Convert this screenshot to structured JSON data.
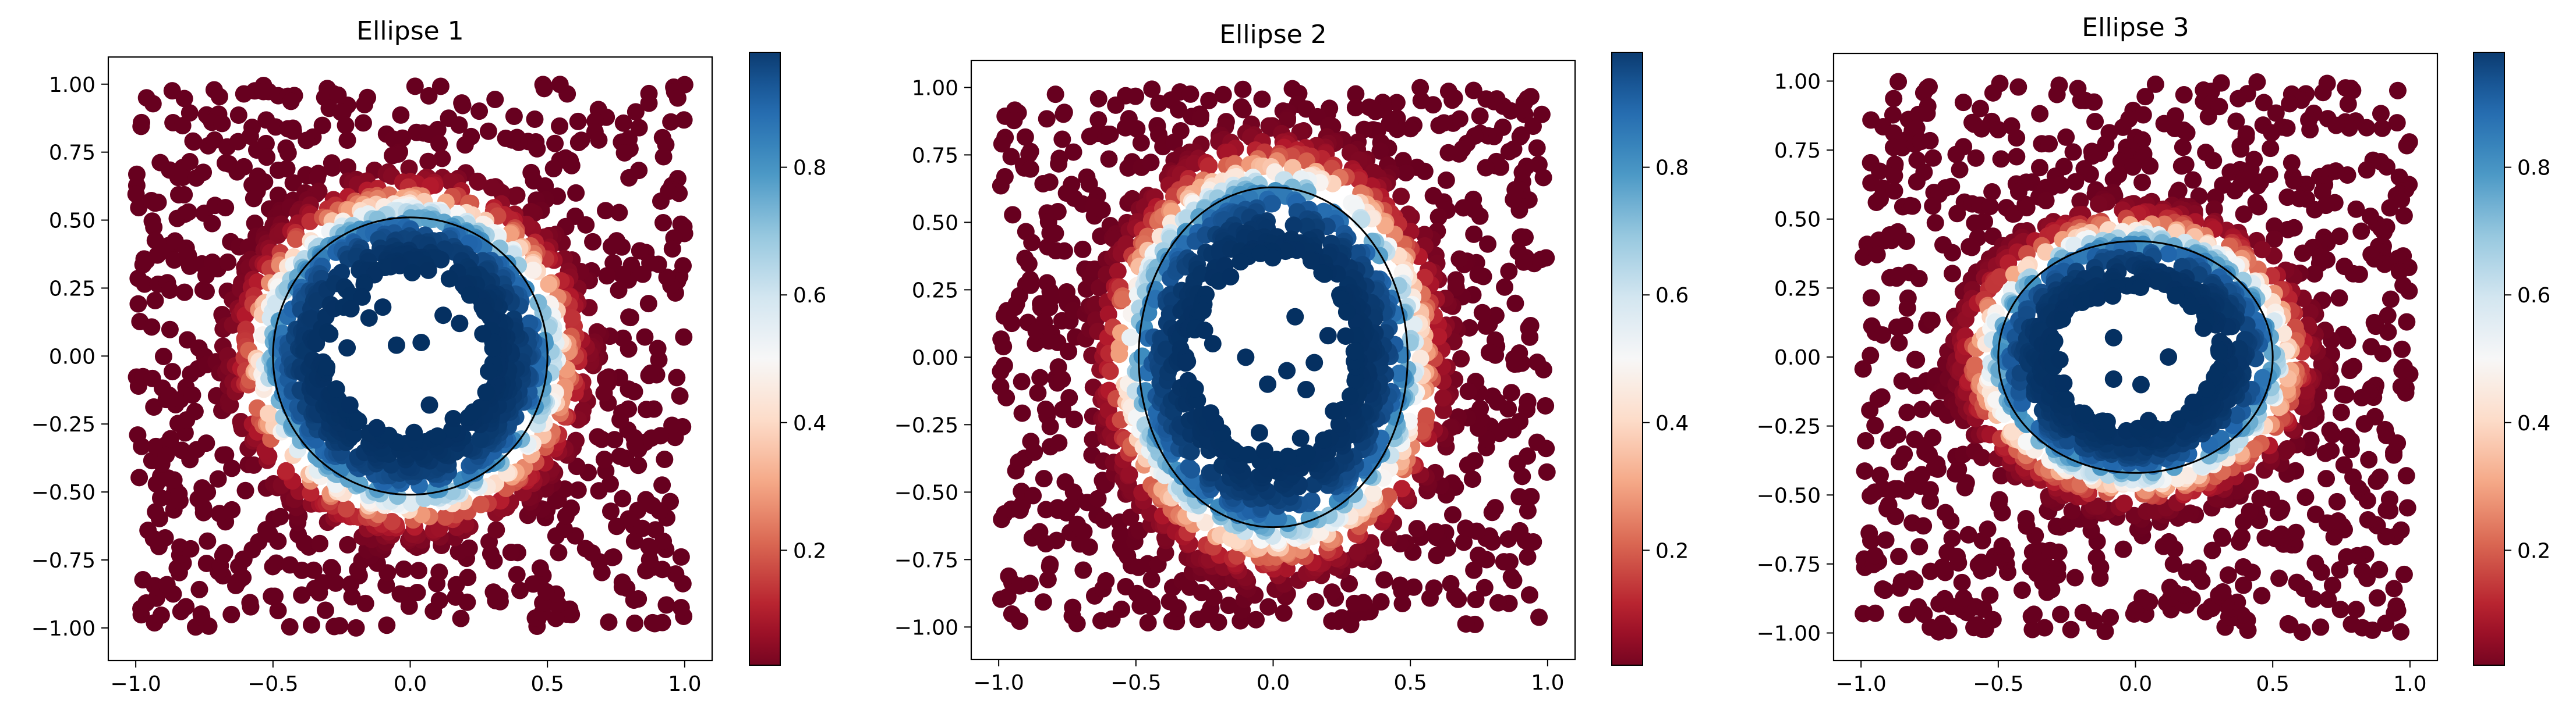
{
  "chart_data": [
    {
      "type": "scatter",
      "title": "Ellipse 1",
      "xlabel": "",
      "ylabel": "",
      "xlim": [
        -1.1,
        1.1
      ],
      "ylim": [
        -1.12,
        1.1
      ],
      "xticks": [
        "−1.0",
        "−0.5",
        "0.0",
        "0.5",
        "1.0"
      ],
      "yticks": [
        "1.00",
        "0.75",
        "0.50",
        "0.25",
        "0.00",
        "−0.25",
        "−0.50",
        "−0.75",
        "−1.00"
      ],
      "ellipse": {
        "cx": 0.0,
        "cy": 0.0,
        "rx": 0.5,
        "ry": 0.51
      },
      "colorbar": {
        "cmap": "RdBu",
        "range": [
          0.02,
          0.98
        ],
        "ticks": [
          "0.2",
          "0.4",
          "0.6",
          "0.8"
        ]
      },
      "points": {
        "n": 1000,
        "distribution": "uniform square [-1,1]^2",
        "value": "sigmoid decreasing with distance from ellipse boundary (inside high, outside low)"
      },
      "inner_points_sample": [
        [
          -0.23,
          0.03
        ],
        [
          -0.15,
          0.14
        ],
        [
          -0.1,
          0.18
        ],
        [
          -0.05,
          0.04
        ],
        [
          0.04,
          0.05
        ],
        [
          0.07,
          -0.18
        ],
        [
          0.12,
          0.15
        ],
        [
          -0.22,
          -0.18
        ],
        [
          0.18,
          0.12
        ]
      ]
    },
    {
      "type": "scatter",
      "title": "Ellipse 2",
      "xlabel": "",
      "ylabel": "",
      "xlim": [
        -1.1,
        1.1
      ],
      "ylim": [
        -1.12,
        1.1
      ],
      "xticks": [
        "−1.0",
        "−0.5",
        "0.0",
        "0.5",
        "1.0"
      ],
      "yticks": [
        "1.00",
        "0.75",
        "0.50",
        "0.25",
        "0.00",
        "−0.25",
        "−0.50",
        "−0.75",
        "−1.00"
      ],
      "ellipse": {
        "cx": 0.0,
        "cy": 0.0,
        "rx": 0.49,
        "ry": 0.63
      },
      "colorbar": {
        "cmap": "RdBu",
        "range": [
          0.02,
          0.98
        ],
        "ticks": [
          "0.2",
          "0.4",
          "0.6",
          "0.8"
        ]
      },
      "points": {
        "n": 1000,
        "distribution": "uniform square [-1,1]^2",
        "value": "sigmoid decreasing with distance from ellipse boundary (inside high, outside low)"
      },
      "inner_points_sample": [
        [
          -0.25,
          0.1
        ],
        [
          -0.22,
          0.05
        ],
        [
          -0.1,
          0.0
        ],
        [
          -0.02,
          -0.1
        ],
        [
          0.05,
          -0.05
        ],
        [
          0.08,
          0.15
        ],
        [
          0.12,
          -0.12
        ],
        [
          0.15,
          -0.02
        ],
        [
          0.2,
          0.08
        ],
        [
          -0.05,
          -0.28
        ],
        [
          0.1,
          -0.3
        ],
        [
          0.22,
          -0.2
        ]
      ]
    },
    {
      "type": "scatter",
      "title": "Ellipse 3",
      "xlabel": "",
      "ylabel": "",
      "xlim": [
        -1.1,
        1.1
      ],
      "ylim": [
        -1.1,
        1.1
      ],
      "xticks": [
        "−1.0",
        "−0.5",
        "0.0",
        "0.5",
        "1.0"
      ],
      "yticks": [
        "1.00",
        "0.75",
        "0.50",
        "0.25",
        "0.00",
        "−0.25",
        "−0.50",
        "−0.75",
        "−1.00"
      ],
      "ellipse": {
        "cx": 0.0,
        "cy": 0.0,
        "rx": 0.5,
        "ry": 0.42
      },
      "colorbar": {
        "cmap": "RdBu",
        "range": [
          0.02,
          0.98
        ],
        "ticks": [
          "0.2",
          "0.4",
          "0.6",
          "0.8"
        ]
      },
      "points": {
        "n": 1000,
        "distribution": "uniform square [-1,1]^2",
        "value": "sigmoid decreasing with distance from ellipse boundary (inside high, outside low)"
      },
      "inner_points_sample": [
        [
          -0.08,
          0.07
        ],
        [
          -0.08,
          -0.08
        ],
        [
          0.02,
          -0.1
        ],
        [
          0.12,
          0.0
        ]
      ]
    }
  ],
  "colors": {
    "low": "#67001f",
    "mid": "#f7f7f7",
    "high": "#053061",
    "ellipse_stroke": "#000000"
  }
}
